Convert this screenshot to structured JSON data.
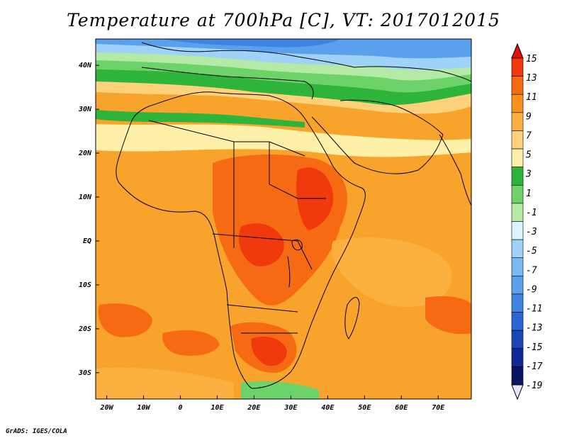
{
  "title": "Temperature at 700hPa [C], VT: 2017012015",
  "footer": "GrADS: IGES/COLA",
  "map": {
    "projection": "latlon",
    "lon_range": [
      -23,
      79
    ],
    "lat_range": [
      -36,
      46
    ],
    "field": "temperature_700hPa",
    "units": "C"
  },
  "axes": {
    "lat_ticks": [
      {
        "value": 40,
        "label": "40N"
      },
      {
        "value": 30,
        "label": "30N"
      },
      {
        "value": 20,
        "label": "20N"
      },
      {
        "value": 10,
        "label": "10N"
      },
      {
        "value": 0,
        "label": "EQ"
      },
      {
        "value": -10,
        "label": "10S"
      },
      {
        "value": -20,
        "label": "20S"
      },
      {
        "value": -30,
        "label": "30S"
      }
    ],
    "lon_ticks": [
      {
        "value": -20,
        "label": "20W"
      },
      {
        "value": -10,
        "label": "10W"
      },
      {
        "value": 0,
        "label": "0"
      },
      {
        "value": 10,
        "label": "10E"
      },
      {
        "value": 20,
        "label": "20E"
      },
      {
        "value": 30,
        "label": "30E"
      },
      {
        "value": 40,
        "label": "40E"
      },
      {
        "value": 50,
        "label": "50E"
      },
      {
        "value": 60,
        "label": "60E"
      },
      {
        "value": 70,
        "label": "70E"
      }
    ]
  },
  "colorbar": {
    "labels": [
      "15",
      "13",
      "11",
      "9",
      "7",
      "5",
      "3",
      "1",
      "-1",
      "-3",
      "-5",
      "-7",
      "-9",
      "-11",
      "-13",
      "-15",
      "-17",
      "-19"
    ],
    "colors": [
      "#e0100a",
      "#f03a0e",
      "#f56a12",
      "#f8901c",
      "#fbb040",
      "#fdd27a",
      "#fef0a8",
      "#2eb43a",
      "#6ed26a",
      "#b4eaa6",
      "#dcf4ff",
      "#9ed2f8",
      "#78baf4",
      "#5aa0ec",
      "#3e84e0",
      "#2a66d4",
      "#1a46b8",
      "#0e2896",
      "#0a1460",
      "#e8e4ff"
    ]
  }
}
